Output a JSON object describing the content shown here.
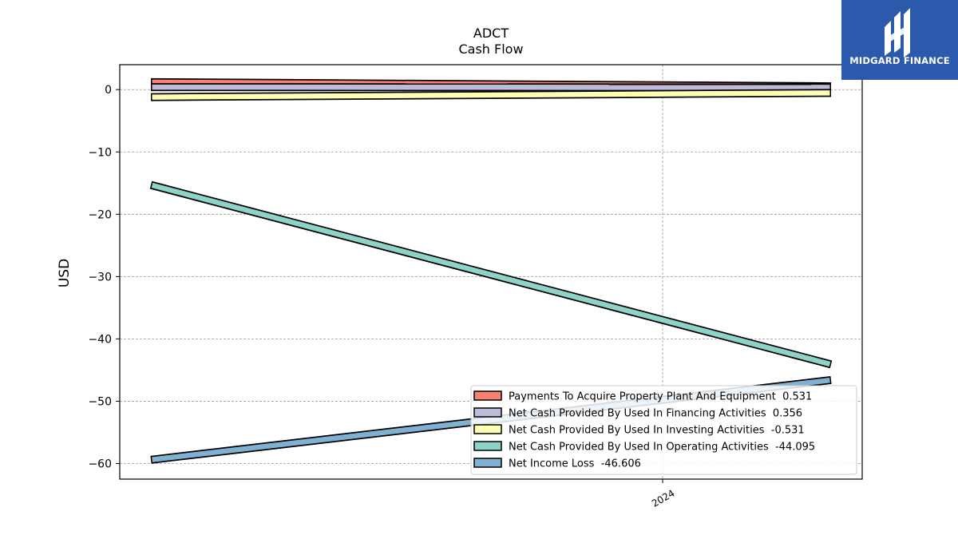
{
  "chart_data": {
    "type": "line",
    "title": "ADCT",
    "subtitle": "Cash Flow",
    "ylabel": "USD",
    "xlabel": "",
    "x_tick_labels": [
      "2024"
    ],
    "y_ticks": [
      0,
      -10,
      -20,
      -30,
      -40,
      -50,
      -60
    ],
    "y_tick_labels": [
      "0",
      "−10",
      "−20",
      "−30",
      "−40",
      "−50",
      "−60"
    ],
    "ylim": [
      -62.5,
      4
    ],
    "grid": true,
    "legend_position": "lower-right",
    "series": [
      {
        "name": "Payments To Acquire Property Plant And Equipment",
        "legend_value": "0.531",
        "color": "#fb8072",
        "values": [
          1.2,
          0.531
        ]
      },
      {
        "name": "Net Cash Provided By Used In Financing Activities",
        "legend_value": "0.356",
        "color": "#bebada",
        "values": [
          0.4,
          0.356
        ]
      },
      {
        "name": "Net Cash Provided By Used In Investing Activities",
        "legend_value": "-0.531",
        "color": "#ffffb3",
        "values": [
          -1.2,
          -0.531
        ]
      },
      {
        "name": "Net Cash Provided By Used In Operating Activities",
        "legend_value": "-44.095",
        "color": "#8dd3c7",
        "values": [
          -15.3,
          -44.095
        ]
      },
      {
        "name": "Net Income Loss",
        "legend_value": "-46.606",
        "color": "#80b1d3",
        "values": [
          -59.4,
          -46.606
        ]
      }
    ]
  },
  "branding": {
    "logo_text": "MIDGARD FINANCE",
    "logo_color": "#2b5aad"
  }
}
